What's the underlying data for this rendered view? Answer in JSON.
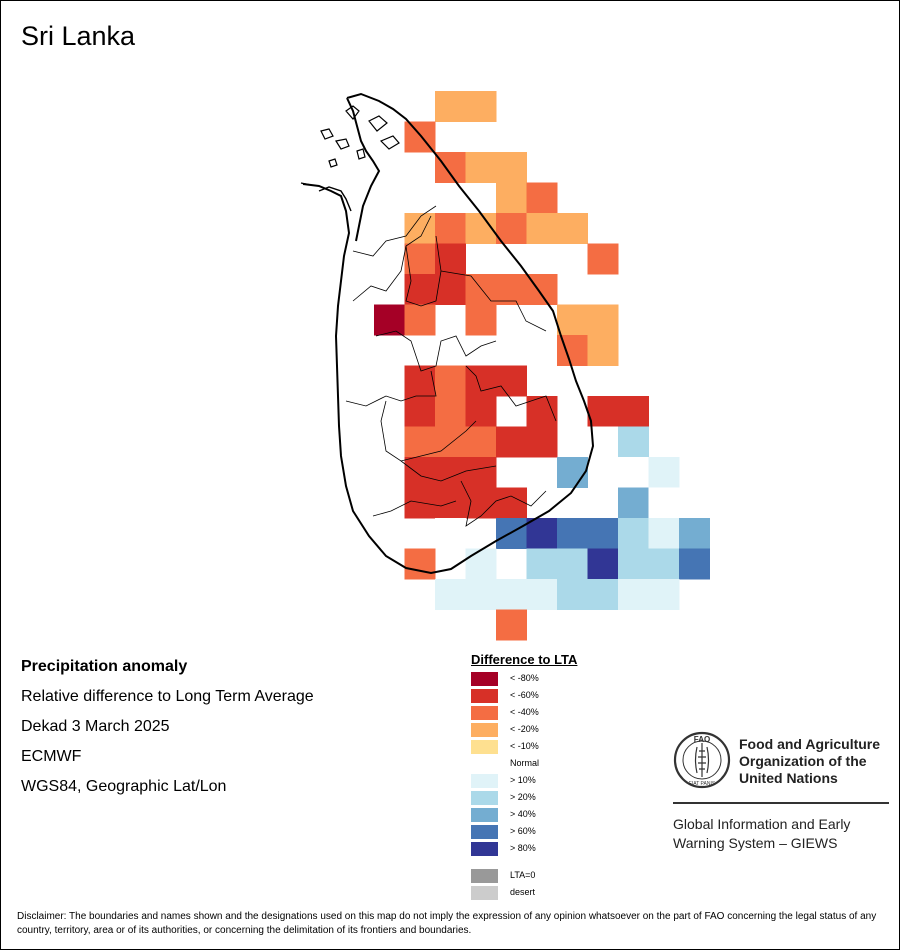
{
  "title": "Sri Lanka",
  "info": {
    "line1": "Precipitation anomaly",
    "line2": "Relative difference to Long Term Average",
    "line3": "Dekad 3 March 2025",
    "line4": "ECMWF",
    "line5": "WGS84, Geographic Lat/Lon"
  },
  "legend": {
    "title": "Difference to LTA",
    "classes": [
      {
        "label": "< -80%",
        "color": "#a50026"
      },
      {
        "label": "< -60%",
        "color": "#d73027"
      },
      {
        "label": "< -40%",
        "color": "#f46d43"
      },
      {
        "label": "< -20%",
        "color": "#fdae61"
      },
      {
        "label": "< -10%",
        "color": "#fee090"
      },
      {
        "label": "Normal",
        "color": "#ffffff"
      },
      {
        "label": "> 10%",
        "color": "#e0f3f8"
      },
      {
        "label": "> 20%",
        "color": "#abd9e9"
      },
      {
        "label": "> 40%",
        "color": "#74add1"
      },
      {
        "label": "> 60%",
        "color": "#4575b4"
      },
      {
        "label": "> 80%",
        "color": "#313695"
      }
    ],
    "extra": [
      {
        "label": "LTA=0",
        "color": "#999999"
      },
      {
        "label": "desert",
        "color": "#cccccc"
      }
    ]
  },
  "grid": {
    "rows": [
      "....dd.....",
      "...c.......",
      "....cdd....",
      "......dc...",
      "...dcdcdd..",
      "...cb....c.",
      "...bbccc...",
      "..ac.c..dd.",
      "........cd.",
      "...bcbb.....",
      "...bcb.b.bb.",
      "...cccbb.fh",
      "...bbb..i.fg",
      "...bbbb...if",
      "....f.jkjjhgi",
      "...c.g.hhkhhj",
      "....gggghhgg",
      "......c....."
    ]
  },
  "fao": {
    "name_line1": "Food and Agriculture",
    "name_line2": "Organization of the",
    "name_line3": "United Nations",
    "emblem_text": "FAO",
    "emblem_motto": "FIAT PANIS",
    "giews_line1": "Global Information and Early",
    "giews_line2": "Warning System – GIEWS"
  },
  "disclaimer": "Disclaimer: The boundaries and names shown and the designations used on this map do not imply the expression of any opinion whatsoever on the part of FAO concerning the legal status of any country, territory, area or of its authorities, or concerning the delimitation of its frontiers and boundaries."
}
